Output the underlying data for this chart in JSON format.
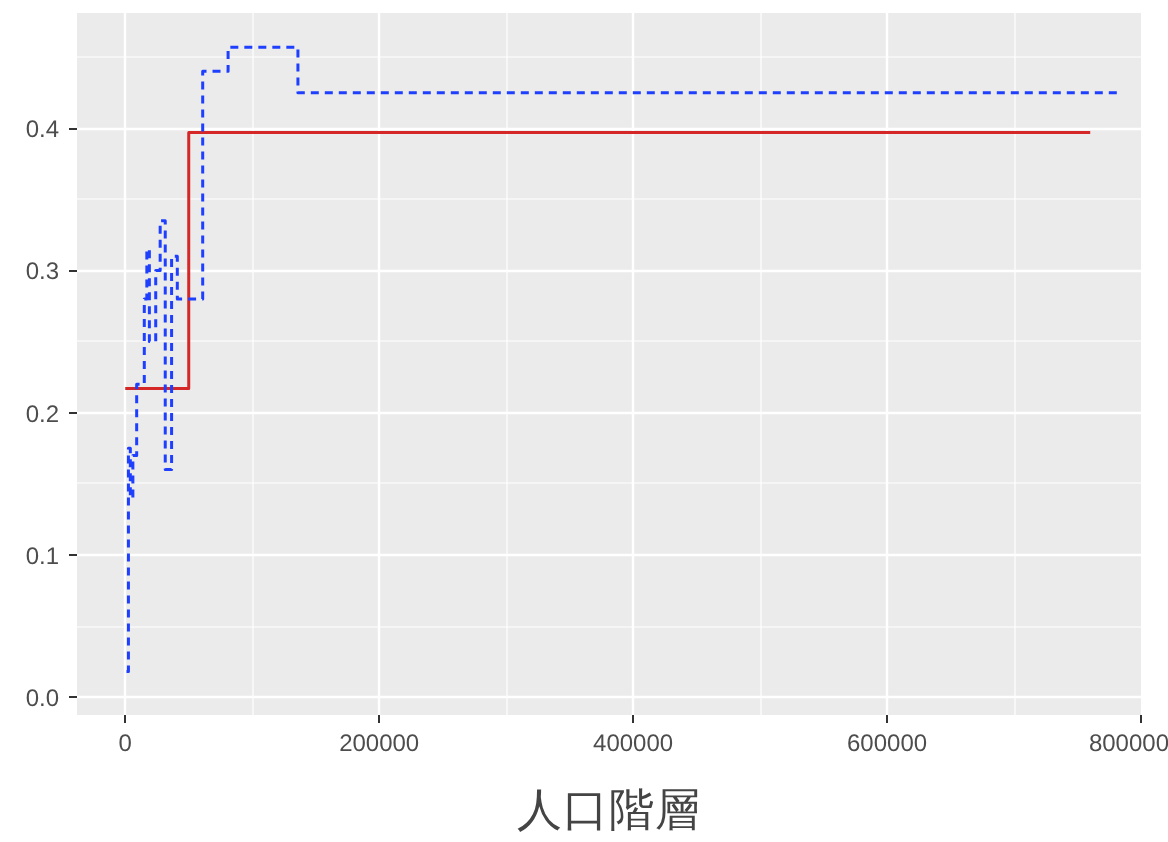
{
  "chart_data": {
    "type": "step",
    "xlabel": "人口階層",
    "series": [
      {
        "color": "#d62728",
        "line_style": "solid",
        "x": [
          0,
          50000,
          760000
        ],
        "values": [
          0.217,
          0.397,
          0.397
        ]
      },
      {
        "color": "#1f3fff",
        "line_style": "dashed",
        "x": [
          1000,
          2500,
          4000,
          6000,
          9000,
          15000,
          17000,
          19000,
          24000,
          27500,
          31500,
          36500,
          41000,
          61000,
          81000,
          136000,
          785000
        ],
        "values": [
          0.018,
          0.175,
          0.14,
          0.17,
          0.22,
          0.28,
          0.315,
          0.25,
          0.3,
          0.335,
          0.16,
          0.31,
          0.28,
          0.44,
          0.457,
          0.425,
          0.425
        ]
      }
    ],
    "xlim": [
      -38000,
      800000
    ],
    "ylim": [
      -0.0125,
      0.481
    ],
    "xticks": [
      0,
      200000,
      400000,
      600000,
      800000
    ],
    "yticks": [
      {
        "value": 0,
        "label": "0.0"
      },
      {
        "value": 0.1,
        "label": "0.1"
      },
      {
        "value": 0.2,
        "label": "0.2"
      },
      {
        "value": 0.3,
        "label": "0.3"
      },
      {
        "value": 0.4,
        "label": "0.4"
      }
    ],
    "grid": true
  }
}
